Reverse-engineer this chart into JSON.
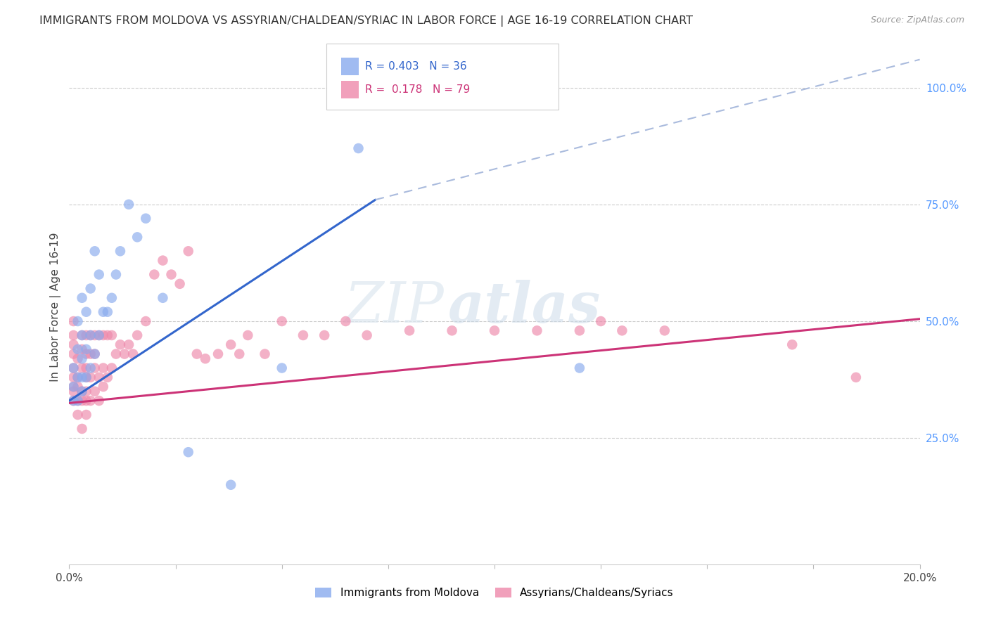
{
  "title": "IMMIGRANTS FROM MOLDOVA VS ASSYRIAN/CHALDEAN/SYRIAC IN LABOR FORCE | AGE 16-19 CORRELATION CHART",
  "source": "Source: ZipAtlas.com",
  "ylabel": "In Labor Force | Age 16-19",
  "xlim": [
    0.0,
    0.2
  ],
  "ylim": [
    -0.02,
    1.08
  ],
  "xticks": [
    0.0,
    0.025,
    0.05,
    0.075,
    0.1,
    0.125,
    0.15,
    0.175,
    0.2
  ],
  "yticks_right": [
    0.25,
    0.5,
    0.75,
    1.0
  ],
  "ytick_right_labels": [
    "25.0%",
    "50.0%",
    "75.0%",
    "100.0%"
  ],
  "grid_color": "#cccccc",
  "background_color": "#ffffff",
  "blue_color": "#88aaee",
  "pink_color": "#ee88aa",
  "blue_line_color": "#3366cc",
  "pink_line_color": "#cc3377",
  "dash_color": "#aabbdd",
  "legend_R1": "R = 0.403",
  "legend_N1": "N = 36",
  "legend_R2": "R =  0.178",
  "legend_N2": "N = 79",
  "legend_label1": "Immigrants from Moldova",
  "legend_label2": "Assyrians/Chaldeans/Syriacs",
  "watermark_zip": "ZIP",
  "watermark_atlas": "atlas",
  "blue_trend": [
    0.0,
    0.072,
    0.33,
    0.76
  ],
  "blue_dash": [
    0.072,
    0.2,
    0.76,
    1.06
  ],
  "pink_trend": [
    0.0,
    0.2,
    0.325,
    0.505
  ],
  "blue_x": [
    0.001,
    0.001,
    0.001,
    0.002,
    0.002,
    0.002,
    0.002,
    0.003,
    0.003,
    0.003,
    0.003,
    0.003,
    0.004,
    0.004,
    0.004,
    0.005,
    0.005,
    0.005,
    0.006,
    0.006,
    0.007,
    0.007,
    0.008,
    0.009,
    0.01,
    0.011,
    0.012,
    0.014,
    0.016,
    0.018,
    0.022,
    0.028,
    0.038,
    0.05,
    0.068,
    0.12
  ],
  "blue_y": [
    0.33,
    0.36,
    0.4,
    0.33,
    0.38,
    0.44,
    0.5,
    0.35,
    0.38,
    0.42,
    0.47,
    0.55,
    0.38,
    0.44,
    0.52,
    0.4,
    0.47,
    0.57,
    0.43,
    0.65,
    0.47,
    0.6,
    0.52,
    0.52,
    0.55,
    0.6,
    0.65,
    0.75,
    0.68,
    0.72,
    0.55,
    0.22,
    0.15,
    0.4,
    0.87,
    0.4
  ],
  "pink_x": [
    0.001,
    0.001,
    0.001,
    0.001,
    0.001,
    0.001,
    0.001,
    0.001,
    0.001,
    0.002,
    0.002,
    0.002,
    0.002,
    0.002,
    0.003,
    0.003,
    0.003,
    0.003,
    0.003,
    0.003,
    0.004,
    0.004,
    0.004,
    0.004,
    0.004,
    0.004,
    0.004,
    0.005,
    0.005,
    0.005,
    0.005,
    0.006,
    0.006,
    0.006,
    0.006,
    0.007,
    0.007,
    0.007,
    0.008,
    0.008,
    0.008,
    0.009,
    0.009,
    0.01,
    0.01,
    0.011,
    0.012,
    0.013,
    0.014,
    0.015,
    0.016,
    0.018,
    0.02,
    0.022,
    0.024,
    0.026,
    0.028,
    0.03,
    0.032,
    0.035,
    0.038,
    0.04,
    0.042,
    0.046,
    0.05,
    0.055,
    0.06,
    0.065,
    0.07,
    0.08,
    0.09,
    0.1,
    0.11,
    0.12,
    0.125,
    0.13,
    0.14,
    0.17,
    0.185
  ],
  "pink_y": [
    0.33,
    0.35,
    0.36,
    0.38,
    0.4,
    0.43,
    0.45,
    0.47,
    0.5,
    0.3,
    0.33,
    0.36,
    0.38,
    0.42,
    0.27,
    0.33,
    0.35,
    0.4,
    0.44,
    0.47,
    0.3,
    0.33,
    0.35,
    0.38,
    0.4,
    0.43,
    0.47,
    0.33,
    0.38,
    0.43,
    0.47,
    0.35,
    0.4,
    0.43,
    0.47,
    0.33,
    0.38,
    0.47,
    0.36,
    0.4,
    0.47,
    0.38,
    0.47,
    0.4,
    0.47,
    0.43,
    0.45,
    0.43,
    0.45,
    0.43,
    0.47,
    0.5,
    0.6,
    0.63,
    0.6,
    0.58,
    0.65,
    0.43,
    0.42,
    0.43,
    0.45,
    0.43,
    0.47,
    0.43,
    0.5,
    0.47,
    0.47,
    0.5,
    0.47,
    0.48,
    0.48,
    0.48,
    0.48,
    0.48,
    0.5,
    0.48,
    0.48,
    0.45,
    0.38
  ]
}
